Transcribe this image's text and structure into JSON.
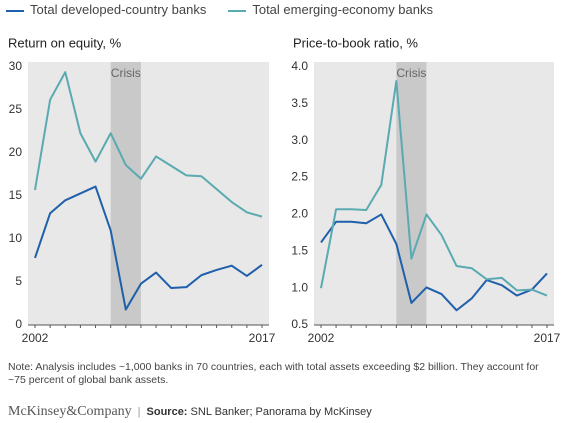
{
  "chart_data": [
    {
      "type": "line",
      "title": "Return on equity, %",
      "x": [
        2002,
        2003,
        2004,
        2005,
        2006,
        2007,
        2008,
        2009,
        2010,
        2011,
        2012,
        2013,
        2014,
        2015,
        2016,
        2017
      ],
      "xlim": [
        2002,
        2017
      ],
      "xticks": [
        2002,
        2017
      ],
      "ylim": [
        0,
        30
      ],
      "yticks": [
        0,
        5,
        10,
        15,
        20,
        25,
        30
      ],
      "annotations": [
        {
          "label": "Crisis",
          "x": [
            2007,
            2009
          ]
        }
      ],
      "series": [
        {
          "name": "Total developed-country banks",
          "color": "#1f5fab",
          "values": [
            7.8,
            13,
            14.5,
            15.3,
            16.1,
            11,
            1.8,
            4.8,
            6.1,
            4.3,
            4.4,
            5.8,
            6.4,
            6.9,
            5.7,
            7
          ]
        },
        {
          "name": "Total emerging-economy banks",
          "color": "#5aaab1",
          "values": [
            15.7,
            26.2,
            29.4,
            22.3,
            19,
            22.3,
            18.6,
            17,
            19.6,
            18.5,
            17.4,
            17.3,
            15.8,
            14.3,
            13.1,
            12.6
          ]
        }
      ]
    },
    {
      "type": "line",
      "title": "Price-to-book ratio, %",
      "x": [
        2002,
        2003,
        2004,
        2005,
        2006,
        2007,
        2008,
        2009,
        2010,
        2011,
        2012,
        2013,
        2014,
        2015,
        2016,
        2017
      ],
      "xlim": [
        2002,
        2017
      ],
      "xticks": [
        2002,
        2017
      ],
      "ylim": [
        0.5,
        4.0
      ],
      "yticks": [
        {
          "value": 0.5,
          "label": "0.5"
        },
        {
          "value": 1,
          "label": "1.0"
        },
        {
          "value": 1.5,
          "label": "1.5"
        },
        {
          "value": 2,
          "label": "2.0"
        },
        {
          "value": 2.5,
          "label": "2.5"
        },
        {
          "value": 3,
          "label": "3.0"
        },
        {
          "value": 3.5,
          "label": "3.5"
        },
        {
          "value": 4,
          "label": "4.0"
        }
      ],
      "annotations": [
        {
          "label": "Crisis",
          "x": [
            2007,
            2009
          ]
        }
      ],
      "series": [
        {
          "name": "Total developed-country banks",
          "color": "#1f5fab",
          "values": [
            1.62,
            1.9,
            1.9,
            1.88,
            2.0,
            1.6,
            0.8,
            1.01,
            0.92,
            0.7,
            0.86,
            1.11,
            1.04,
            0.9,
            0.98,
            1.2
          ]
        },
        {
          "name": "Total emerging-economy banks",
          "color": "#5aaab1",
          "values": [
            1.0,
            2.07,
            2.07,
            2.06,
            2.4,
            3.81,
            1.4,
            2.0,
            1.72,
            1.3,
            1.27,
            1.12,
            1.14,
            0.97,
            0.98,
            0.9
          ]
        }
      ]
    }
  ],
  "note": "Note: Analysis includes ~1,000 banks in 70 countries, each with total assets exceeding $2 billion. They account for ~75 percent of global bank assets.",
  "footer": {
    "brand": "McKinsey&Company",
    "source_label": "Source:",
    "source": "SNL Banker; Panorama by McKinsey"
  }
}
